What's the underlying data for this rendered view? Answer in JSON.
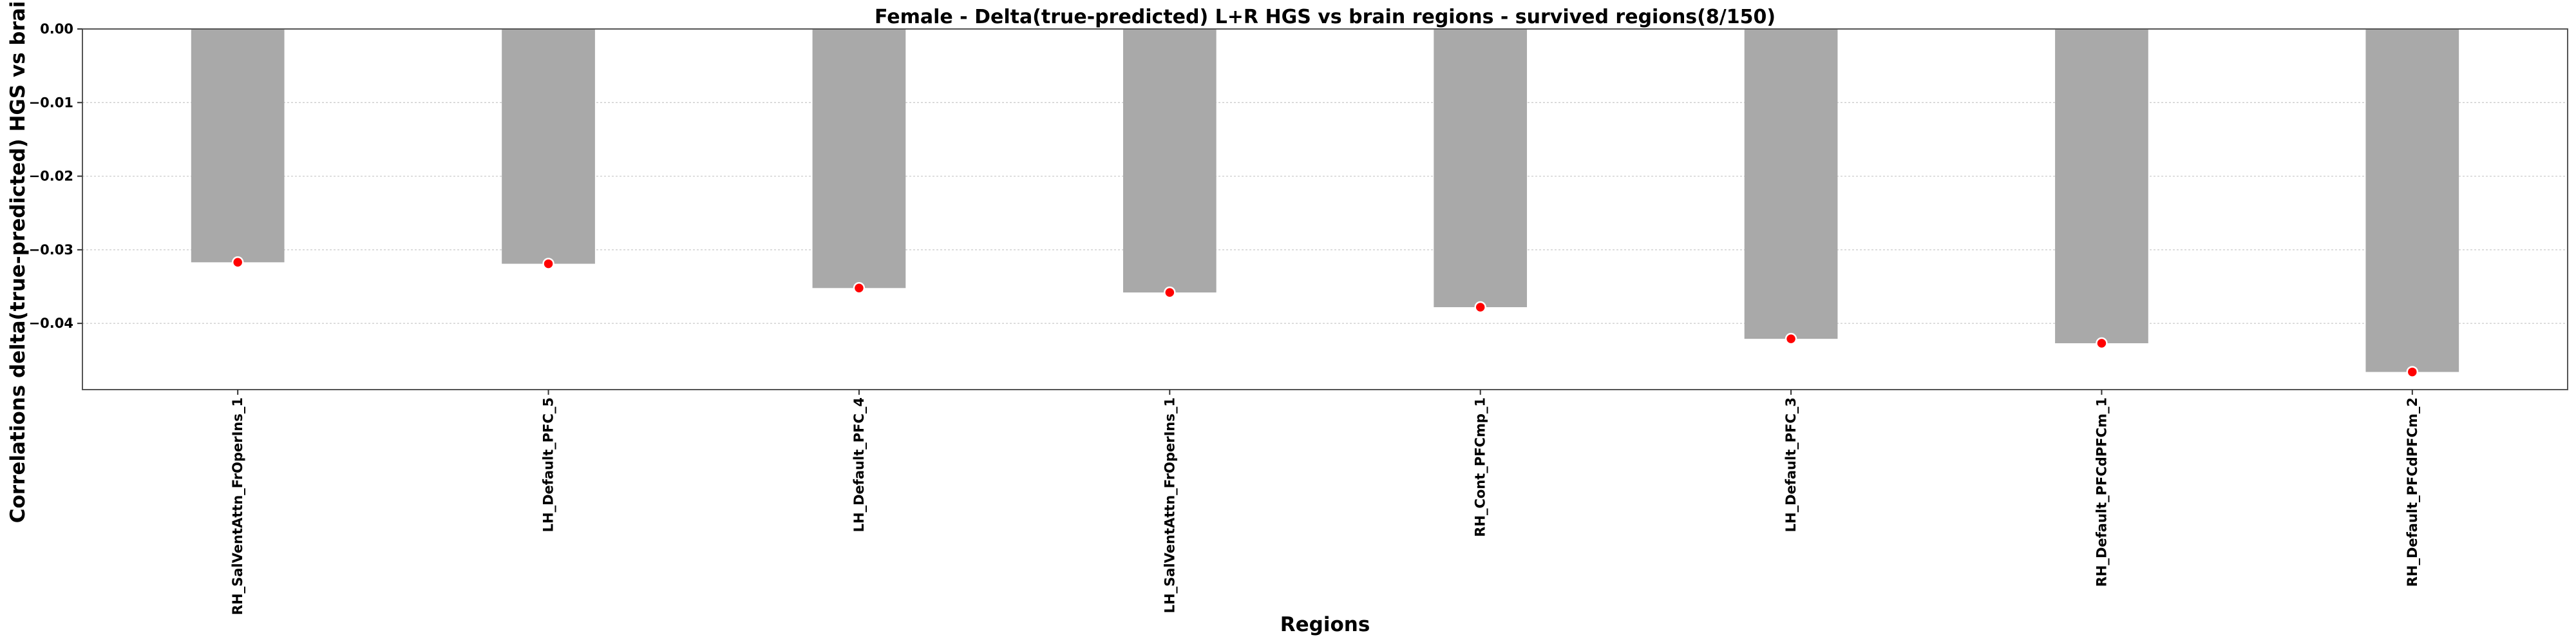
{
  "chart_data": {
    "type": "bar",
    "title": "Female - Delta(true-predicted) L+R HGS vs brain regions - survived regions(8/150)",
    "xlabel": "Regions",
    "ylabel": "Correlations delta(true-predicted) HGS vs brain regions",
    "categories": [
      "RH_SalVentAttn_FrOperIns_1",
      "LH_Default_PFC_5",
      "LH_Default_PFC_4",
      "LH_SalVentAttn_FrOperIns_1",
      "RH_Cont_PFCmp_1",
      "LH_Default_PFC_3",
      "RH_Default_PFCdPFCm_1",
      "RH_Default_PFCdPFCm_2"
    ],
    "values": [
      -0.0317,
      -0.0319,
      -0.0352,
      -0.0358,
      -0.0378,
      -0.0421,
      -0.0427,
      -0.0466
    ],
    "ylim": [
      -0.049,
      0.0
    ],
    "yticks": [
      0.0,
      -0.01,
      -0.02,
      -0.03,
      -0.04
    ],
    "ytick_labels": [
      "0.00",
      "−0.01",
      "−0.02",
      "−0.03",
      "−0.04"
    ],
    "grid": true,
    "bar_color": "#a9a9a9",
    "marker_color": "#ff0000",
    "legend": "none"
  }
}
